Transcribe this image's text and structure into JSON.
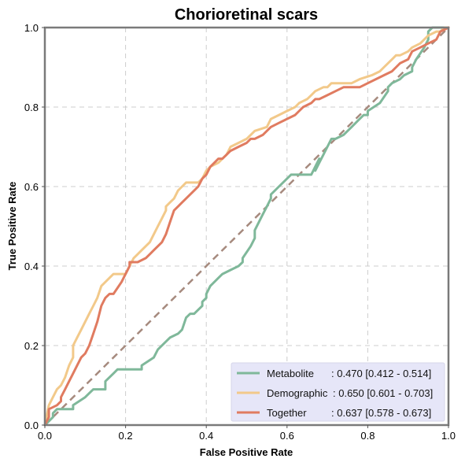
{
  "chart_data": {
    "type": "line",
    "title": "Chorioretinal scars",
    "xlabel": "False Positive Rate",
    "ylabel": "True Positive Rate",
    "xlim": [
      0,
      1
    ],
    "ylim": [
      0,
      1
    ],
    "xticks": [
      "0.0",
      "0.2",
      "0.4",
      "0.6",
      "0.8",
      "1.0"
    ],
    "yticks": [
      "0.0",
      "0.2",
      "0.4",
      "0.6",
      "0.8",
      "1.0"
    ],
    "grid": true,
    "legend_position": "bottom-right",
    "diagonal": {
      "color": "#a68a7e",
      "x": [
        0,
        1
      ],
      "y": [
        0,
        1
      ]
    },
    "series": [
      {
        "name": "Metabolite",
        "auc_label": ": 0.470 [0.412 - 0.514]",
        "color": "#7fb89a",
        "x": [
          0.0,
          0.01,
          0.02,
          0.02,
          0.03,
          0.07,
          0.07,
          0.1,
          0.11,
          0.12,
          0.15,
          0.15,
          0.17,
          0.18,
          0.18,
          0.24,
          0.24,
          0.27,
          0.28,
          0.3,
          0.31,
          0.33,
          0.34,
          0.35,
          0.36,
          0.37,
          0.38,
          0.39,
          0.39,
          0.4,
          0.4,
          0.41,
          0.43,
          0.44,
          0.46,
          0.48,
          0.49,
          0.49,
          0.51,
          0.52,
          0.52,
          0.53,
          0.54,
          0.55,
          0.56,
          0.56,
          0.57,
          0.58,
          0.59,
          0.6,
          0.61,
          0.62,
          0.64,
          0.66,
          0.68,
          0.67,
          0.68,
          0.69,
          0.7,
          0.71,
          0.72,
          0.74,
          0.76,
          0.77,
          0.78,
          0.79,
          0.8,
          0.8,
          0.83,
          0.85,
          0.85,
          0.86,
          0.88,
          0.89,
          0.91,
          0.91,
          0.92,
          0.94,
          0.95,
          0.95,
          0.96,
          1.0
        ],
        "y": [
          0.0,
          0.01,
          0.02,
          0.03,
          0.04,
          0.04,
          0.05,
          0.07,
          0.08,
          0.09,
          0.09,
          0.11,
          0.13,
          0.14,
          0.14,
          0.14,
          0.15,
          0.17,
          0.19,
          0.21,
          0.22,
          0.23,
          0.24,
          0.27,
          0.28,
          0.28,
          0.29,
          0.3,
          0.31,
          0.32,
          0.33,
          0.35,
          0.37,
          0.38,
          0.39,
          0.4,
          0.41,
          0.42,
          0.45,
          0.47,
          0.49,
          0.51,
          0.53,
          0.55,
          0.57,
          0.58,
          0.59,
          0.6,
          0.61,
          0.62,
          0.63,
          0.63,
          0.63,
          0.63,
          0.67,
          0.64,
          0.66,
          0.68,
          0.7,
          0.72,
          0.72,
          0.73,
          0.75,
          0.76,
          0.77,
          0.78,
          0.78,
          0.79,
          0.81,
          0.84,
          0.85,
          0.86,
          0.87,
          0.88,
          0.89,
          0.9,
          0.92,
          0.95,
          0.97,
          0.99,
          1.0,
          1.0
        ]
      },
      {
        "name": "Demographic",
        "auc_label": ": 0.650 [0.601 - 0.703]",
        "color": "#f2c98a",
        "x": [
          0.0,
          0.01,
          0.02,
          0.03,
          0.04,
          0.05,
          0.06,
          0.07,
          0.07,
          0.08,
          0.09,
          0.1,
          0.11,
          0.12,
          0.13,
          0.14,
          0.16,
          0.17,
          0.2,
          0.21,
          0.22,
          0.23,
          0.24,
          0.26,
          0.27,
          0.28,
          0.29,
          0.3,
          0.3,
          0.31,
          0.32,
          0.33,
          0.34,
          0.35,
          0.35,
          0.38,
          0.39,
          0.4,
          0.41,
          0.43,
          0.44,
          0.45,
          0.46,
          0.48,
          0.5,
          0.51,
          0.52,
          0.55,
          0.56,
          0.58,
          0.6,
          0.62,
          0.63,
          0.65,
          0.66,
          0.67,
          0.69,
          0.7,
          0.71,
          0.72,
          0.74,
          0.76,
          0.78,
          0.81,
          0.83,
          0.84,
          0.86,
          0.87,
          0.88,
          0.9,
          0.91,
          0.93,
          0.95,
          0.97,
          0.98,
          0.99,
          1.0
        ],
        "y": [
          0.0,
          0.05,
          0.07,
          0.09,
          0.1,
          0.12,
          0.15,
          0.17,
          0.2,
          0.22,
          0.24,
          0.26,
          0.28,
          0.3,
          0.32,
          0.35,
          0.37,
          0.38,
          0.38,
          0.4,
          0.42,
          0.43,
          0.44,
          0.46,
          0.48,
          0.5,
          0.52,
          0.54,
          0.55,
          0.56,
          0.57,
          0.59,
          0.6,
          0.61,
          0.61,
          0.61,
          0.62,
          0.64,
          0.65,
          0.66,
          0.67,
          0.68,
          0.7,
          0.71,
          0.72,
          0.73,
          0.74,
          0.75,
          0.77,
          0.78,
          0.79,
          0.8,
          0.81,
          0.82,
          0.83,
          0.84,
          0.85,
          0.85,
          0.86,
          0.86,
          0.86,
          0.86,
          0.87,
          0.88,
          0.89,
          0.9,
          0.92,
          0.93,
          0.93,
          0.94,
          0.95,
          0.96,
          0.98,
          0.99,
          0.99,
          1.0,
          1.0
        ]
      },
      {
        "name": "Together",
        "auc_label": ": 0.637 [0.578 - 0.673]",
        "color": "#e07b60",
        "x": [
          0.0,
          0.01,
          0.01,
          0.03,
          0.04,
          0.04,
          0.05,
          0.06,
          0.07,
          0.08,
          0.09,
          0.1,
          0.11,
          0.12,
          0.13,
          0.14,
          0.15,
          0.16,
          0.17,
          0.19,
          0.2,
          0.21,
          0.21,
          0.23,
          0.25,
          0.26,
          0.27,
          0.28,
          0.29,
          0.3,
          0.31,
          0.32,
          0.33,
          0.34,
          0.35,
          0.36,
          0.37,
          0.38,
          0.39,
          0.4,
          0.41,
          0.42,
          0.43,
          0.44,
          0.45,
          0.46,
          0.48,
          0.5,
          0.51,
          0.52,
          0.54,
          0.55,
          0.56,
          0.58,
          0.6,
          0.62,
          0.63,
          0.64,
          0.66,
          0.67,
          0.68,
          0.7,
          0.72,
          0.74,
          0.78,
          0.8,
          0.82,
          0.84,
          0.86,
          0.87,
          0.88,
          0.9,
          0.91,
          0.93,
          0.95,
          0.97,
          0.98,
          1.0
        ],
        "y": [
          0.0,
          0.02,
          0.04,
          0.05,
          0.06,
          0.07,
          0.09,
          0.11,
          0.13,
          0.15,
          0.17,
          0.18,
          0.2,
          0.23,
          0.26,
          0.3,
          0.32,
          0.33,
          0.33,
          0.36,
          0.38,
          0.4,
          0.41,
          0.41,
          0.42,
          0.43,
          0.44,
          0.45,
          0.46,
          0.48,
          0.51,
          0.54,
          0.55,
          0.56,
          0.57,
          0.58,
          0.59,
          0.6,
          0.62,
          0.63,
          0.65,
          0.66,
          0.67,
          0.67,
          0.68,
          0.69,
          0.7,
          0.71,
          0.72,
          0.72,
          0.73,
          0.74,
          0.75,
          0.76,
          0.77,
          0.78,
          0.79,
          0.8,
          0.81,
          0.82,
          0.82,
          0.83,
          0.84,
          0.85,
          0.85,
          0.86,
          0.87,
          0.88,
          0.89,
          0.9,
          0.91,
          0.92,
          0.94,
          0.95,
          0.96,
          0.97,
          0.99,
          1.0
        ]
      }
    ]
  }
}
